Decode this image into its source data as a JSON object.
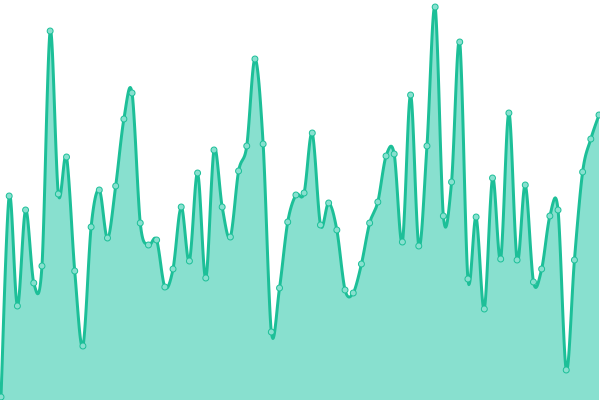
{
  "chart_data": {
    "type": "area",
    "title": "",
    "xlabel": "",
    "ylabel": "",
    "ylim": [
      0,
      400
    ],
    "grid": false,
    "legend": "none",
    "curve": "smooth",
    "markers": true,
    "colors": {
      "line": "#1dbf98",
      "fill": "#88e0cf",
      "marker_fill": "#88e0cf",
      "marker_stroke": "#1dbf98"
    },
    "values": [
      3,
      204,
      94,
      190,
      117,
      134,
      369,
      206,
      243,
      129,
      54,
      173,
      210,
      162,
      214,
      281,
      307,
      177,
      155,
      160,
      113,
      131,
      193,
      139,
      227,
      122,
      250,
      193,
      163,
      229,
      254,
      341,
      256,
      68,
      112,
      178,
      205,
      207,
      267,
      175,
      197,
      170,
      110,
      107,
      136,
      177,
      198,
      244,
      246,
      158,
      305,
      154,
      254,
      393,
      184,
      218,
      358,
      121,
      183,
      91,
      222,
      141,
      287,
      140,
      215,
      118,
      131,
      184,
      190,
      30,
      140,
      228,
      261,
      285
    ]
  }
}
